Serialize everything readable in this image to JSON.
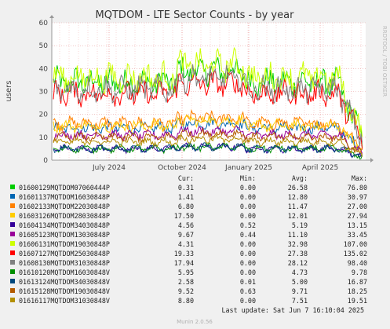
{
  "chart_data": {
    "type": "line",
    "title": "MQTDOM - LTE Sector Counts - by year",
    "ylabel": "users",
    "ylim": [
      0,
      60
    ],
    "yticks": [
      0,
      10,
      20,
      30,
      40,
      50,
      60
    ],
    "xticks": [
      "July 2024",
      "October 2024",
      "January 2025",
      "April 2025"
    ],
    "grid": true,
    "side_label": "RRDTOOL / TOBI OETIKER",
    "table_headers": {
      "cur": "Cur:",
      "min": "Min:",
      "avg": "Avg:",
      "max": "Max:"
    },
    "series": [
      {
        "name": "01600129MQTDOM07060444P",
        "color": "#00cc00",
        "cur": "0.31",
        "min": "0.00",
        "avg": "26.58",
        "max": "76.80",
        "level": 34
      },
      {
        "name": "01601137MQTDOM16030848P",
        "color": "#0066b3",
        "cur": "1.41",
        "min": "0.00",
        "avg": "12.80",
        "max": "30.97",
        "level": 14
      },
      {
        "name": "01602133MQTDOM22030848P",
        "color": "#ff8000",
        "cur": "6.80",
        "min": "0.00",
        "avg": "11.47",
        "max": "27.00",
        "level": 16
      },
      {
        "name": "01603126MQTDOM28030848P",
        "color": "#ffcc00",
        "cur": "17.50",
        "min": "0.00",
        "avg": "12.01",
        "max": "27.94",
        "level": 15
      },
      {
        "name": "01604134MQTDOM34030848P",
        "color": "#330099",
        "cur": "4.56",
        "min": "0.52",
        "avg": "5.19",
        "max": "13.15",
        "level": 5
      },
      {
        "name": "01605123MQTDOM13030848P",
        "color": "#990099",
        "cur": "9.67",
        "min": "0.44",
        "avg": "11.10",
        "max": "33.45",
        "level": 11
      },
      {
        "name": "01606131MQTDOM19030848P",
        "color": "#ccff00",
        "cur": "4.31",
        "min": "0.00",
        "avg": "32.98",
        "max": "107.00",
        "level": 36
      },
      {
        "name": "01607127MQTDOM25030848P",
        "color": "#ff0000",
        "cur": "19.33",
        "min": "0.00",
        "avg": "27.38",
        "max": "135.02",
        "level": 29
      },
      {
        "name": "01608130MQTDOM31030848P",
        "color": "#808080",
        "cur": "17.94",
        "min": "0.00",
        "avg": "28.12",
        "max": "98.40",
        "level": 31
      },
      {
        "name": "01610120MQTDOM16030848V",
        "color": "#008f00",
        "cur": "5.95",
        "min": "0.00",
        "avg": "4.73",
        "max": "9.78",
        "level": 5
      },
      {
        "name": "01613124MQTDOM34030848V",
        "color": "#00487d",
        "cur": "2.58",
        "min": "0.01",
        "avg": "5.00",
        "max": "16.87",
        "level": 5
      },
      {
        "name": "01615128MQTDOM19030848V",
        "color": "#b35a00",
        "cur": "9.52",
        "min": "0.63",
        "avg": "9.71",
        "max": "18.25",
        "level": 10
      },
      {
        "name": "01616117MQTDOM31030848V",
        "color": "#b38f00",
        "cur": "8.80",
        "min": "0.00",
        "avg": "7.51",
        "max": "19.51",
        "level": 8
      }
    ]
  },
  "footer": {
    "last_update": "Last update: Sat Jun  7 16:10:04 2025",
    "munin": "Munin 2.0.56"
  }
}
